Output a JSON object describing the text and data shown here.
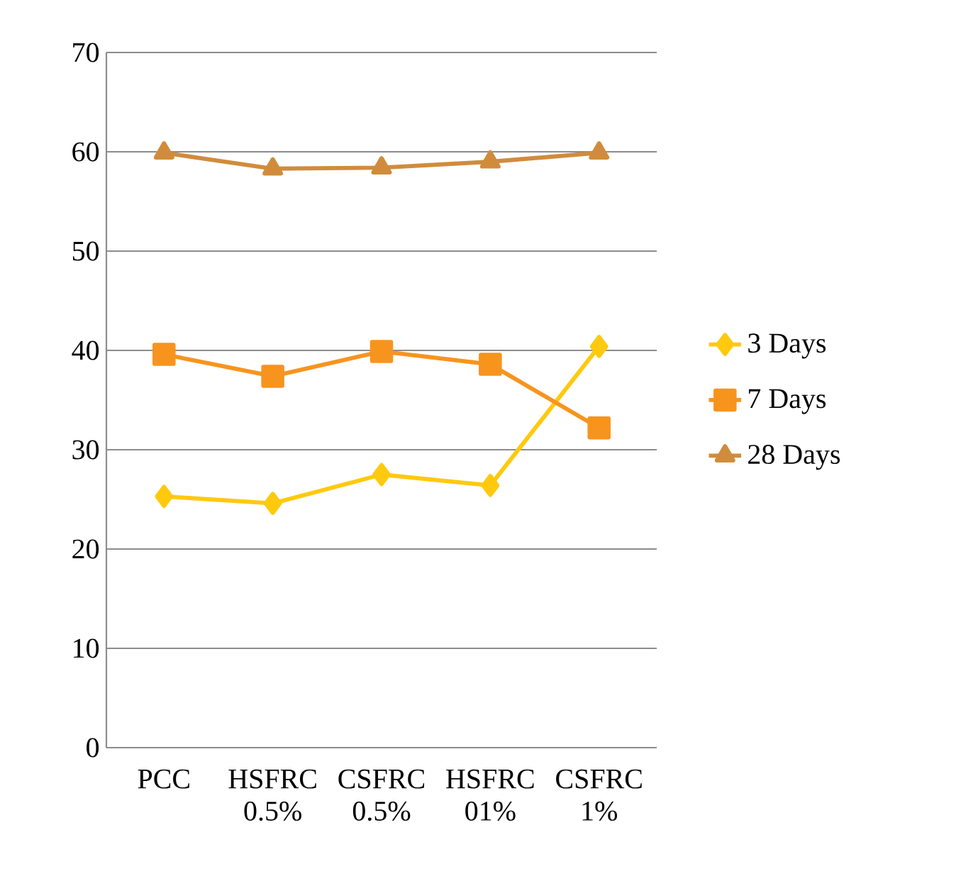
{
  "chart_data": {
    "type": "line",
    "categories": [
      "PCC",
      "HSFRC 0.5%",
      "CSFRC 0.5%",
      "HSFRC 01%",
      "CSFRC 1%"
    ],
    "series": [
      {
        "name": "3 Days",
        "color": "#ffc90e",
        "marker": "diamond",
        "values": [
          25.3,
          24.6,
          27.5,
          26.4,
          40.4
        ]
      },
      {
        "name": "7 Days",
        "color": "#f7941e",
        "marker": "square",
        "values": [
          39.6,
          37.4,
          39.9,
          38.6,
          32.2
        ]
      },
      {
        "name": "28 Days",
        "color": "#d08c3c",
        "marker": "triangle",
        "values": [
          59.9,
          58.3,
          58.4,
          59.0,
          59.9
        ]
      }
    ],
    "ylim": [
      0,
      70
    ],
    "yticks": [
      0,
      10,
      20,
      30,
      40,
      50,
      60,
      70
    ],
    "grid": "y",
    "legend": "right"
  }
}
